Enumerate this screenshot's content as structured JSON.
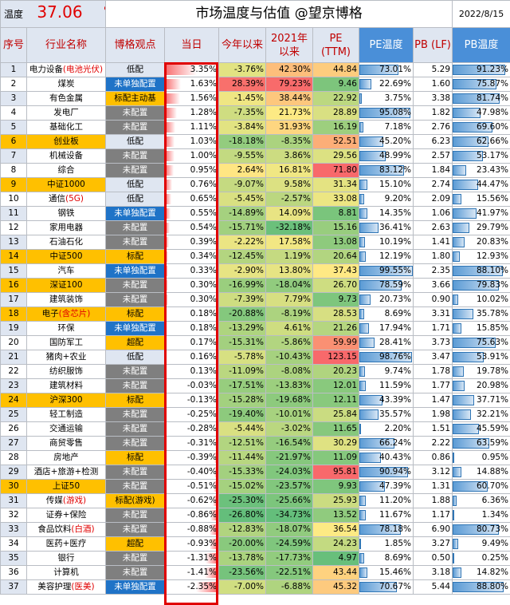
{
  "header": {
    "temp_label": "温度",
    "temp_value": "37.06",
    "temp_unit": "℃",
    "title": "市场温度与估值 @望京博格",
    "date": "2022/8/15"
  },
  "columns": {
    "no": "序号",
    "industry": "行业名称",
    "view": "博格观点",
    "day": "当日",
    "ytd": "今年以来",
    "since2021": "2021年以来",
    "pe": "PE (TTM)",
    "pe_temp": "PE温度",
    "pb": "PB (LF)",
    "pb_temp": "PB温度"
  },
  "rows": [
    {
      "no": "1",
      "name": "电力设备",
      "sub": "(电池光伏)",
      "view": "低配",
      "vt": "low",
      "hl": false,
      "day": "3.35%",
      "dv": 3.35,
      "ytd": "-3.76%",
      "s21": "42.30%",
      "pe": "44.84",
      "pet": "73.01%",
      "petv": 73.01,
      "pb": "5.29",
      "pbt": "91.23%",
      "pbtv": 91.23
    },
    {
      "no": "2",
      "name": "煤炭",
      "sub": "",
      "view": "未单独配置",
      "vt": "blue",
      "hl": false,
      "day": "1.63%",
      "dv": 1.63,
      "ytd": "28.39%",
      "s21": "79.23%",
      "pe": "9.46",
      "pet": "22.69%",
      "petv": 22.69,
      "pb": "1.60",
      "pbt": "75.87%",
      "pbtv": 75.87
    },
    {
      "no": "3",
      "name": "有色金属",
      "sub": "",
      "view": "标配主动基",
      "vt": "gold",
      "hl": false,
      "day": "1.56%",
      "dv": 1.56,
      "ytd": "-1.45%",
      "s21": "38.44%",
      "pe": "22.92",
      "pet": "3.75%",
      "petv": 3.75,
      "pb": "3.38",
      "pbt": "81.74%",
      "pbtv": 81.74
    },
    {
      "no": "4",
      "name": "发电厂",
      "sub": "",
      "view": "未配置",
      "vt": "gray",
      "hl": false,
      "day": "1.28%",
      "dv": 1.28,
      "ytd": "-7.35%",
      "s21": "21.73%",
      "pe": "28.89",
      "pet": "95.08%",
      "petv": 95.08,
      "pb": "1.82",
      "pbt": "47.98%",
      "pbtv": 47.98
    },
    {
      "no": "5",
      "name": "基础化工",
      "sub": "",
      "view": "未配置",
      "vt": "gray",
      "hl": false,
      "day": "1.11%",
      "dv": 1.11,
      "ytd": "-3.84%",
      "s21": "31.93%",
      "pe": "16.19",
      "pet": "7.18%",
      "petv": 7.18,
      "pb": "2.76",
      "pbt": "69.60%",
      "pbtv": 69.6
    },
    {
      "no": "6",
      "name": "创业板",
      "sub": "",
      "view": "低配",
      "vt": "low",
      "hl": true,
      "day": "1.03%",
      "dv": 1.03,
      "ytd": "-18.18%",
      "s21": "-8.35%",
      "pe": "52.51",
      "pet": "45.20%",
      "petv": 45.2,
      "pb": "6.23",
      "pbt": "62.66%",
      "pbtv": 62.66
    },
    {
      "no": "7",
      "name": "机械设备",
      "sub": "",
      "view": "未配置",
      "vt": "gray",
      "hl": false,
      "day": "1.00%",
      "dv": 1.0,
      "ytd": "-9.55%",
      "s21": "3.86%",
      "pe": "29.56",
      "pet": "48.99%",
      "petv": 48.99,
      "pb": "2.57",
      "pbt": "53.17%",
      "pbtv": 53.17
    },
    {
      "no": "8",
      "name": "综合",
      "sub": "",
      "view": "未配置",
      "vt": "gray",
      "hl": false,
      "day": "0.95%",
      "dv": 0.95,
      "ytd": "2.64%",
      "s21": "16.81%",
      "pe": "71.80",
      "pet": "83.12%",
      "petv": 83.12,
      "pb": "1.84",
      "pbt": "23.43%",
      "pbtv": 23.43
    },
    {
      "no": "9",
      "name": "中证1000",
      "sub": "",
      "view": "低配",
      "vt": "low",
      "hl": true,
      "day": "0.76%",
      "dv": 0.76,
      "ytd": "-9.07%",
      "s21": "9.58%",
      "pe": "31.34",
      "pet": "15.10%",
      "petv": 15.1,
      "pb": "2.74",
      "pbt": "44.47%",
      "pbtv": 44.47
    },
    {
      "no": "10",
      "name": "通信",
      "sub": "(5G)",
      "view": "低配",
      "vt": "low",
      "hl": false,
      "day": "0.65%",
      "dv": 0.65,
      "ytd": "-5.45%",
      "s21": "-2.57%",
      "pe": "33.08",
      "pet": "9.20%",
      "petv": 9.2,
      "pb": "2.09",
      "pbt": "15.56%",
      "pbtv": 15.56
    },
    {
      "no": "11",
      "name": "钢铁",
      "sub": "",
      "view": "未单独配置",
      "vt": "blue",
      "hl": false,
      "day": "0.55%",
      "dv": 0.55,
      "ytd": "-14.89%",
      "s21": "14.09%",
      "pe": "8.81",
      "pet": "14.35%",
      "petv": 14.35,
      "pb": "1.06",
      "pbt": "41.97%",
      "pbtv": 41.97
    },
    {
      "no": "12",
      "name": "家用电器",
      "sub": "",
      "view": "未配置",
      "vt": "gray",
      "hl": false,
      "day": "0.54%",
      "dv": 0.54,
      "ytd": "-15.71%",
      "s21": "-32.18%",
      "pe": "15.16",
      "pet": "36.41%",
      "petv": 36.41,
      "pb": "2.63",
      "pbt": "29.79%",
      "pbtv": 29.79
    },
    {
      "no": "13",
      "name": "石油石化",
      "sub": "",
      "view": "未配置",
      "vt": "gray",
      "hl": false,
      "day": "0.39%",
      "dv": 0.39,
      "ytd": "-2.22%",
      "s21": "17.58%",
      "pe": "13.08",
      "pet": "10.19%",
      "petv": 10.19,
      "pb": "1.41",
      "pbt": "20.83%",
      "pbtv": 20.83
    },
    {
      "no": "14",
      "name": "中证500",
      "sub": "",
      "view": "标配",
      "vt": "gold",
      "hl": true,
      "day": "0.34%",
      "dv": 0.34,
      "ytd": "-12.45%",
      "s21": "1.19%",
      "pe": "20.64",
      "pet": "12.19%",
      "petv": 12.19,
      "pb": "1.80",
      "pbt": "12.93%",
      "pbtv": 12.93
    },
    {
      "no": "15",
      "name": "汽车",
      "sub": "",
      "view": "未单独配置",
      "vt": "blue",
      "hl": false,
      "day": "0.33%",
      "dv": 0.33,
      "ytd": "-2.90%",
      "s21": "13.80%",
      "pe": "37.43",
      "pet": "99.55%",
      "petv": 99.55,
      "pb": "2.35",
      "pbt": "88.10%",
      "pbtv": 88.1
    },
    {
      "no": "16",
      "name": "深证100",
      "sub": "",
      "view": "未配置",
      "vt": "gray",
      "hl": true,
      "day": "0.30%",
      "dv": 0.3,
      "ytd": "-16.99%",
      "s21": "-18.04%",
      "pe": "26.70",
      "pet": "78.59%",
      "petv": 78.59,
      "pb": "3.66",
      "pbt": "79.83%",
      "pbtv": 79.83
    },
    {
      "no": "17",
      "name": "建筑装饰",
      "sub": "",
      "view": "未配置",
      "vt": "gray",
      "hl": false,
      "day": "0.30%",
      "dv": 0.3,
      "ytd": "-7.39%",
      "s21": "7.79%",
      "pe": "9.73",
      "pet": "20.73%",
      "petv": 20.73,
      "pb": "0.90",
      "pbt": "10.02%",
      "pbtv": 10.02
    },
    {
      "no": "18",
      "name": "电子",
      "sub": "(含芯片)",
      "view": "标配",
      "vt": "gold",
      "hl": true,
      "day": "0.18%",
      "dv": 0.18,
      "ytd": "-20.88%",
      "s21": "-8.19%",
      "pe": "28.53",
      "pet": "8.69%",
      "petv": 8.69,
      "pb": "3.31",
      "pbt": "35.78%",
      "pbtv": 35.78
    },
    {
      "no": "19",
      "name": "环保",
      "sub": "",
      "view": "未单独配置",
      "vt": "blue",
      "hl": false,
      "day": "0.18%",
      "dv": 0.18,
      "ytd": "-13.29%",
      "s21": "4.61%",
      "pe": "21.26",
      "pet": "17.94%",
      "petv": 17.94,
      "pb": "1.71",
      "pbt": "15.85%",
      "pbtv": 15.85
    },
    {
      "no": "20",
      "name": "国防军工",
      "sub": "",
      "view": "超配",
      "vt": "buy",
      "hl": false,
      "day": "0.17%",
      "dv": 0.17,
      "ytd": "-15.31%",
      "s21": "-5.86%",
      "pe": "59.99",
      "pet": "28.41%",
      "petv": 28.41,
      "pb": "3.73",
      "pbt": "75.63%",
      "pbtv": 75.63
    },
    {
      "no": "21",
      "name": "猪肉+农业",
      "sub": "",
      "view": "低配",
      "vt": "low",
      "hl": false,
      "day": "0.16%",
      "dv": 0.16,
      "ytd": "-5.78%",
      "s21": "-10.43%",
      "pe": "123.15",
      "pet": "98.76%",
      "petv": 98.76,
      "pb": "3.47",
      "pbt": "53.91%",
      "pbtv": 53.91
    },
    {
      "no": "22",
      "name": "纺织服饰",
      "sub": "",
      "view": "未配置",
      "vt": "gray",
      "hl": false,
      "day": "0.13%",
      "dv": 0.13,
      "ytd": "-11.09%",
      "s21": "-8.08%",
      "pe": "20.23",
      "pet": "9.74%",
      "petv": 9.74,
      "pb": "1.78",
      "pbt": "19.78%",
      "pbtv": 19.78
    },
    {
      "no": "23",
      "name": "建筑材料",
      "sub": "",
      "view": "未配置",
      "vt": "gray",
      "hl": false,
      "day": "-0.03%",
      "dv": -0.03,
      "ytd": "-17.51%",
      "s21": "-13.83%",
      "pe": "12.01",
      "pet": "11.59%",
      "petv": 11.59,
      "pb": "1.77",
      "pbt": "20.98%",
      "pbtv": 20.98
    },
    {
      "no": "24",
      "name": "沪深300",
      "sub": "",
      "view": "标配",
      "vt": "gold",
      "hl": true,
      "day": "-0.13%",
      "dv": -0.13,
      "ytd": "-15.28%",
      "s21": "-19.68%",
      "pe": "12.11",
      "pet": "43.39%",
      "petv": 43.39,
      "pb": "1.47",
      "pbt": "37.71%",
      "pbtv": 37.71
    },
    {
      "no": "25",
      "name": "轻工制造",
      "sub": "",
      "view": "未配置",
      "vt": "gray",
      "hl": false,
      "day": "-0.25%",
      "dv": -0.25,
      "ytd": "-19.40%",
      "s21": "-10.01%",
      "pe": "25.84",
      "pet": "35.57%",
      "petv": 35.57,
      "pb": "1.98",
      "pbt": "32.21%",
      "pbtv": 32.21
    },
    {
      "no": "26",
      "name": "交通运输",
      "sub": "",
      "view": "未配置",
      "vt": "gray",
      "hl": false,
      "day": "-0.28%",
      "dv": -0.28,
      "ytd": "-5.44%",
      "s21": "-3.02%",
      "pe": "11.65",
      "pet": "2.20%",
      "petv": 2.2,
      "pb": "1.51",
      "pbt": "45.59%",
      "pbtv": 45.59
    },
    {
      "no": "27",
      "name": "商贸零售",
      "sub": "",
      "view": "未配置",
      "vt": "gray",
      "hl": false,
      "day": "-0.31%",
      "dv": -0.31,
      "ytd": "-12.51%",
      "s21": "-16.54%",
      "pe": "30.29",
      "pet": "66.24%",
      "petv": 66.24,
      "pb": "2.22",
      "pbt": "63.59%",
      "pbtv": 63.59
    },
    {
      "no": "28",
      "name": "房地产",
      "sub": "",
      "view": "标配",
      "vt": "gold",
      "hl": false,
      "day": "-0.39%",
      "dv": -0.39,
      "ytd": "-11.44%",
      "s21": "-21.97%",
      "pe": "11.09",
      "pet": "40.43%",
      "petv": 40.43,
      "pb": "0.86",
      "pbt": "0.95%",
      "pbtv": 0.95
    },
    {
      "no": "29",
      "name": "酒店+旅游+检测",
      "sub": "",
      "view": "未配置",
      "vt": "gray",
      "hl": false,
      "day": "-0.40%",
      "dv": -0.4,
      "ytd": "-15.33%",
      "s21": "-24.03%",
      "pe": "95.81",
      "pet": "90.94%",
      "petv": 90.94,
      "pb": "3.12",
      "pbt": "14.88%",
      "pbtv": 14.88
    },
    {
      "no": "30",
      "name": "上证50",
      "sub": "",
      "view": "未配置",
      "vt": "gray",
      "hl": true,
      "day": "-0.51%",
      "dv": -0.51,
      "ytd": "-15.02%",
      "s21": "-23.57%",
      "pe": "9.93",
      "pet": "47.39%",
      "petv": 47.39,
      "pb": "1.31",
      "pbt": "60.70%",
      "pbtv": 60.7
    },
    {
      "no": "31",
      "name": "传媒",
      "sub": "(游戏)",
      "view": "标配(游戏)",
      "vt": "gold",
      "hl": false,
      "day": "-0.62%",
      "dv": -0.62,
      "ytd": "-25.30%",
      "s21": "-25.66%",
      "pe": "25.93",
      "pet": "11.20%",
      "petv": 11.2,
      "pb": "1.88",
      "pbt": "6.36%",
      "pbtv": 6.36
    },
    {
      "no": "32",
      "name": "证券+保险",
      "sub": "",
      "view": "未配置",
      "vt": "gray",
      "hl": false,
      "day": "-0.86%",
      "dv": -0.86,
      "ytd": "-26.80%",
      "s21": "-34.73%",
      "pe": "13.52",
      "pet": "11.67%",
      "petv": 11.67,
      "pb": "1.17",
      "pbt": "1.34%",
      "pbtv": 1.34
    },
    {
      "no": "33",
      "name": "食品饮料",
      "sub": "(白酒)",
      "view": "未配置",
      "vt": "gray",
      "hl": false,
      "day": "-0.88%",
      "dv": -0.88,
      "ytd": "-12.83%",
      "s21": "-18.07%",
      "pe": "36.54",
      "pet": "78.18%",
      "petv": 78.18,
      "pb": "6.90",
      "pbt": "80.73%",
      "pbtv": 80.73
    },
    {
      "no": "34",
      "name": "医药+医疗",
      "sub": "",
      "view": "超配",
      "vt": "buy",
      "hl": false,
      "day": "-0.93%",
      "dv": -0.93,
      "ytd": "-20.00%",
      "s21": "-24.59%",
      "pe": "24.23",
      "pet": "1.85%",
      "petv": 1.85,
      "pb": "3.27",
      "pbt": "9.49%",
      "pbtv": 9.49
    },
    {
      "no": "35",
      "name": "银行",
      "sub": "",
      "view": "未配置",
      "vt": "gray",
      "hl": false,
      "day": "-1.31%",
      "dv": -1.31,
      "ytd": "-13.78%",
      "s21": "-17.73%",
      "pe": "4.97",
      "pet": "8.69%",
      "petv": 8.69,
      "pb": "0.50",
      "pbt": "0.25%",
      "pbtv": 0.25
    },
    {
      "no": "36",
      "name": "计算机",
      "sub": "",
      "view": "未配置",
      "vt": "gray",
      "hl": false,
      "day": "-1.41%",
      "dv": -1.41,
      "ytd": "-23.56%",
      "s21": "-22.51%",
      "pe": "43.44",
      "pet": "15.46%",
      "petv": 15.46,
      "pb": "3.18",
      "pbt": "14.82%",
      "pbtv": 14.82
    },
    {
      "no": "37",
      "name": "美容护理",
      "sub": "(医美)",
      "view": "未单独配置",
      "vt": "blue",
      "hl": false,
      "day": "-2.35%",
      "dv": -2.35,
      "ytd": "-7.00%",
      "s21": "-6.88%",
      "pe": "45.32",
      "pet": "70.67%",
      "petv": 70.67,
      "pb": "5.44",
      "pbt": "88.80%",
      "pbtv": 88.8
    }
  ]
}
